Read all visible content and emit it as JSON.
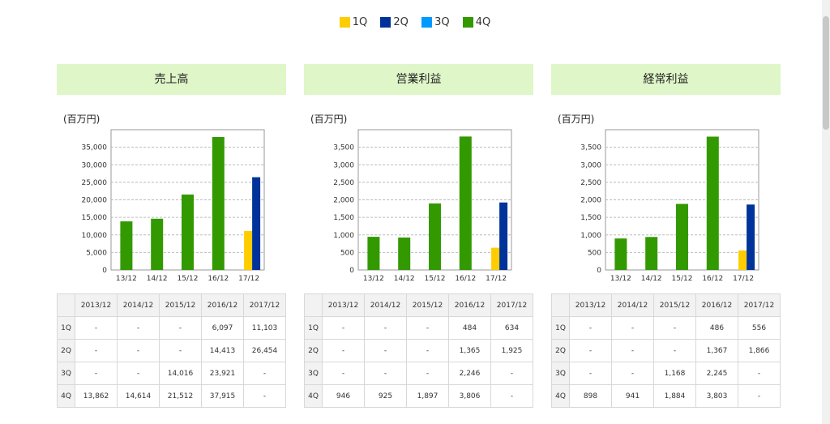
{
  "legend": [
    {
      "label": "1Q",
      "color": "#ffcc00"
    },
    {
      "label": "2Q",
      "color": "#003399"
    },
    {
      "label": "3Q",
      "color": "#0099ff"
    },
    {
      "label": "4Q",
      "color": "#339900"
    }
  ],
  "chart_data": [
    {
      "type": "bar",
      "title": "売上高",
      "ylabel": "(百万円)",
      "categories": [
        "13/12",
        "14/12",
        "15/12",
        "16/12",
        "17/12"
      ],
      "ylim": [
        0,
        40000
      ],
      "yticks": [
        0,
        5000,
        10000,
        15000,
        20000,
        25000,
        30000,
        35000
      ],
      "ytick_labels": [
        "0",
        "5,000",
        "10,000",
        "15,000",
        "20,000",
        "25,000",
        "30,000",
        "35,000"
      ],
      "bars": [
        [
          {
            "q": "4Q",
            "value": 13862
          }
        ],
        [
          {
            "q": "4Q",
            "value": 14614
          }
        ],
        [
          {
            "q": "4Q",
            "value": 21512
          }
        ],
        [
          {
            "q": "4Q",
            "value": 37915
          }
        ],
        [
          {
            "q": "1Q",
            "value": 11103
          },
          {
            "q": "2Q",
            "value": 26454
          }
        ]
      ],
      "table": {
        "headers": [
          "2013/12",
          "2014/12",
          "2015/12",
          "2016/12",
          "2017/12"
        ],
        "rows": [
          {
            "label": "1Q",
            "cells": [
              "-",
              "-",
              "-",
              "6,097",
              "11,103"
            ]
          },
          {
            "label": "2Q",
            "cells": [
              "-",
              "-",
              "-",
              "14,413",
              "26,454"
            ]
          },
          {
            "label": "3Q",
            "cells": [
              "-",
              "-",
              "14,016",
              "23,921",
              "-"
            ]
          },
          {
            "label": "4Q",
            "cells": [
              "13,862",
              "14,614",
              "21,512",
              "37,915",
              "-"
            ]
          }
        ]
      }
    },
    {
      "type": "bar",
      "title": "営業利益",
      "ylabel": "(百万円)",
      "categories": [
        "13/12",
        "14/12",
        "15/12",
        "16/12",
        "17/12"
      ],
      "ylim": [
        0,
        4000
      ],
      "yticks": [
        0,
        500,
        1000,
        1500,
        2000,
        2500,
        3000,
        3500
      ],
      "ytick_labels": [
        "0",
        "500",
        "1,000",
        "1,500",
        "2,000",
        "2,500",
        "3,000",
        "3,500"
      ],
      "bars": [
        [
          {
            "q": "4Q",
            "value": 946
          }
        ],
        [
          {
            "q": "4Q",
            "value": 925
          }
        ],
        [
          {
            "q": "4Q",
            "value": 1897
          }
        ],
        [
          {
            "q": "4Q",
            "value": 3806
          }
        ],
        [
          {
            "q": "1Q",
            "value": 634
          },
          {
            "q": "2Q",
            "value": 1925
          }
        ]
      ],
      "table": {
        "headers": [
          "2013/12",
          "2014/12",
          "2015/12",
          "2016/12",
          "2017/12"
        ],
        "rows": [
          {
            "label": "1Q",
            "cells": [
              "-",
              "-",
              "-",
              "484",
              "634"
            ]
          },
          {
            "label": "2Q",
            "cells": [
              "-",
              "-",
              "-",
              "1,365",
              "1,925"
            ]
          },
          {
            "label": "3Q",
            "cells": [
              "-",
              "-",
              "-",
              "2,246",
              "-"
            ]
          },
          {
            "label": "4Q",
            "cells": [
              "946",
              "925",
              "1,897",
              "3,806",
              "-"
            ]
          }
        ]
      }
    },
    {
      "type": "bar",
      "title": "経常利益",
      "ylabel": "(百万円)",
      "categories": [
        "13/12",
        "14/12",
        "15/12",
        "16/12",
        "17/12"
      ],
      "ylim": [
        0,
        4000
      ],
      "yticks": [
        0,
        500,
        1000,
        1500,
        2000,
        2500,
        3000,
        3500
      ],
      "ytick_labels": [
        "0",
        "500",
        "1,000",
        "1,500",
        "2,000",
        "2,500",
        "3,000",
        "3,500"
      ],
      "bars": [
        [
          {
            "q": "4Q",
            "value": 898
          }
        ],
        [
          {
            "q": "4Q",
            "value": 941
          }
        ],
        [
          {
            "q": "4Q",
            "value": 1884
          }
        ],
        [
          {
            "q": "4Q",
            "value": 3803
          }
        ],
        [
          {
            "q": "1Q",
            "value": 556
          },
          {
            "q": "2Q",
            "value": 1866
          }
        ]
      ],
      "table": {
        "headers": [
          "2013/12",
          "2014/12",
          "2015/12",
          "2016/12",
          "2017/12"
        ],
        "rows": [
          {
            "label": "1Q",
            "cells": [
              "-",
              "-",
              "-",
              "486",
              "556"
            ]
          },
          {
            "label": "2Q",
            "cells": [
              "-",
              "-",
              "-",
              "1,367",
              "1,866"
            ]
          },
          {
            "label": "3Q",
            "cells": [
              "-",
              "-",
              "1,168",
              "2,245",
              "-"
            ]
          },
          {
            "label": "4Q",
            "cells": [
              "898",
              "941",
              "1,884",
              "3,803",
              "-"
            ]
          }
        ]
      }
    }
  ]
}
